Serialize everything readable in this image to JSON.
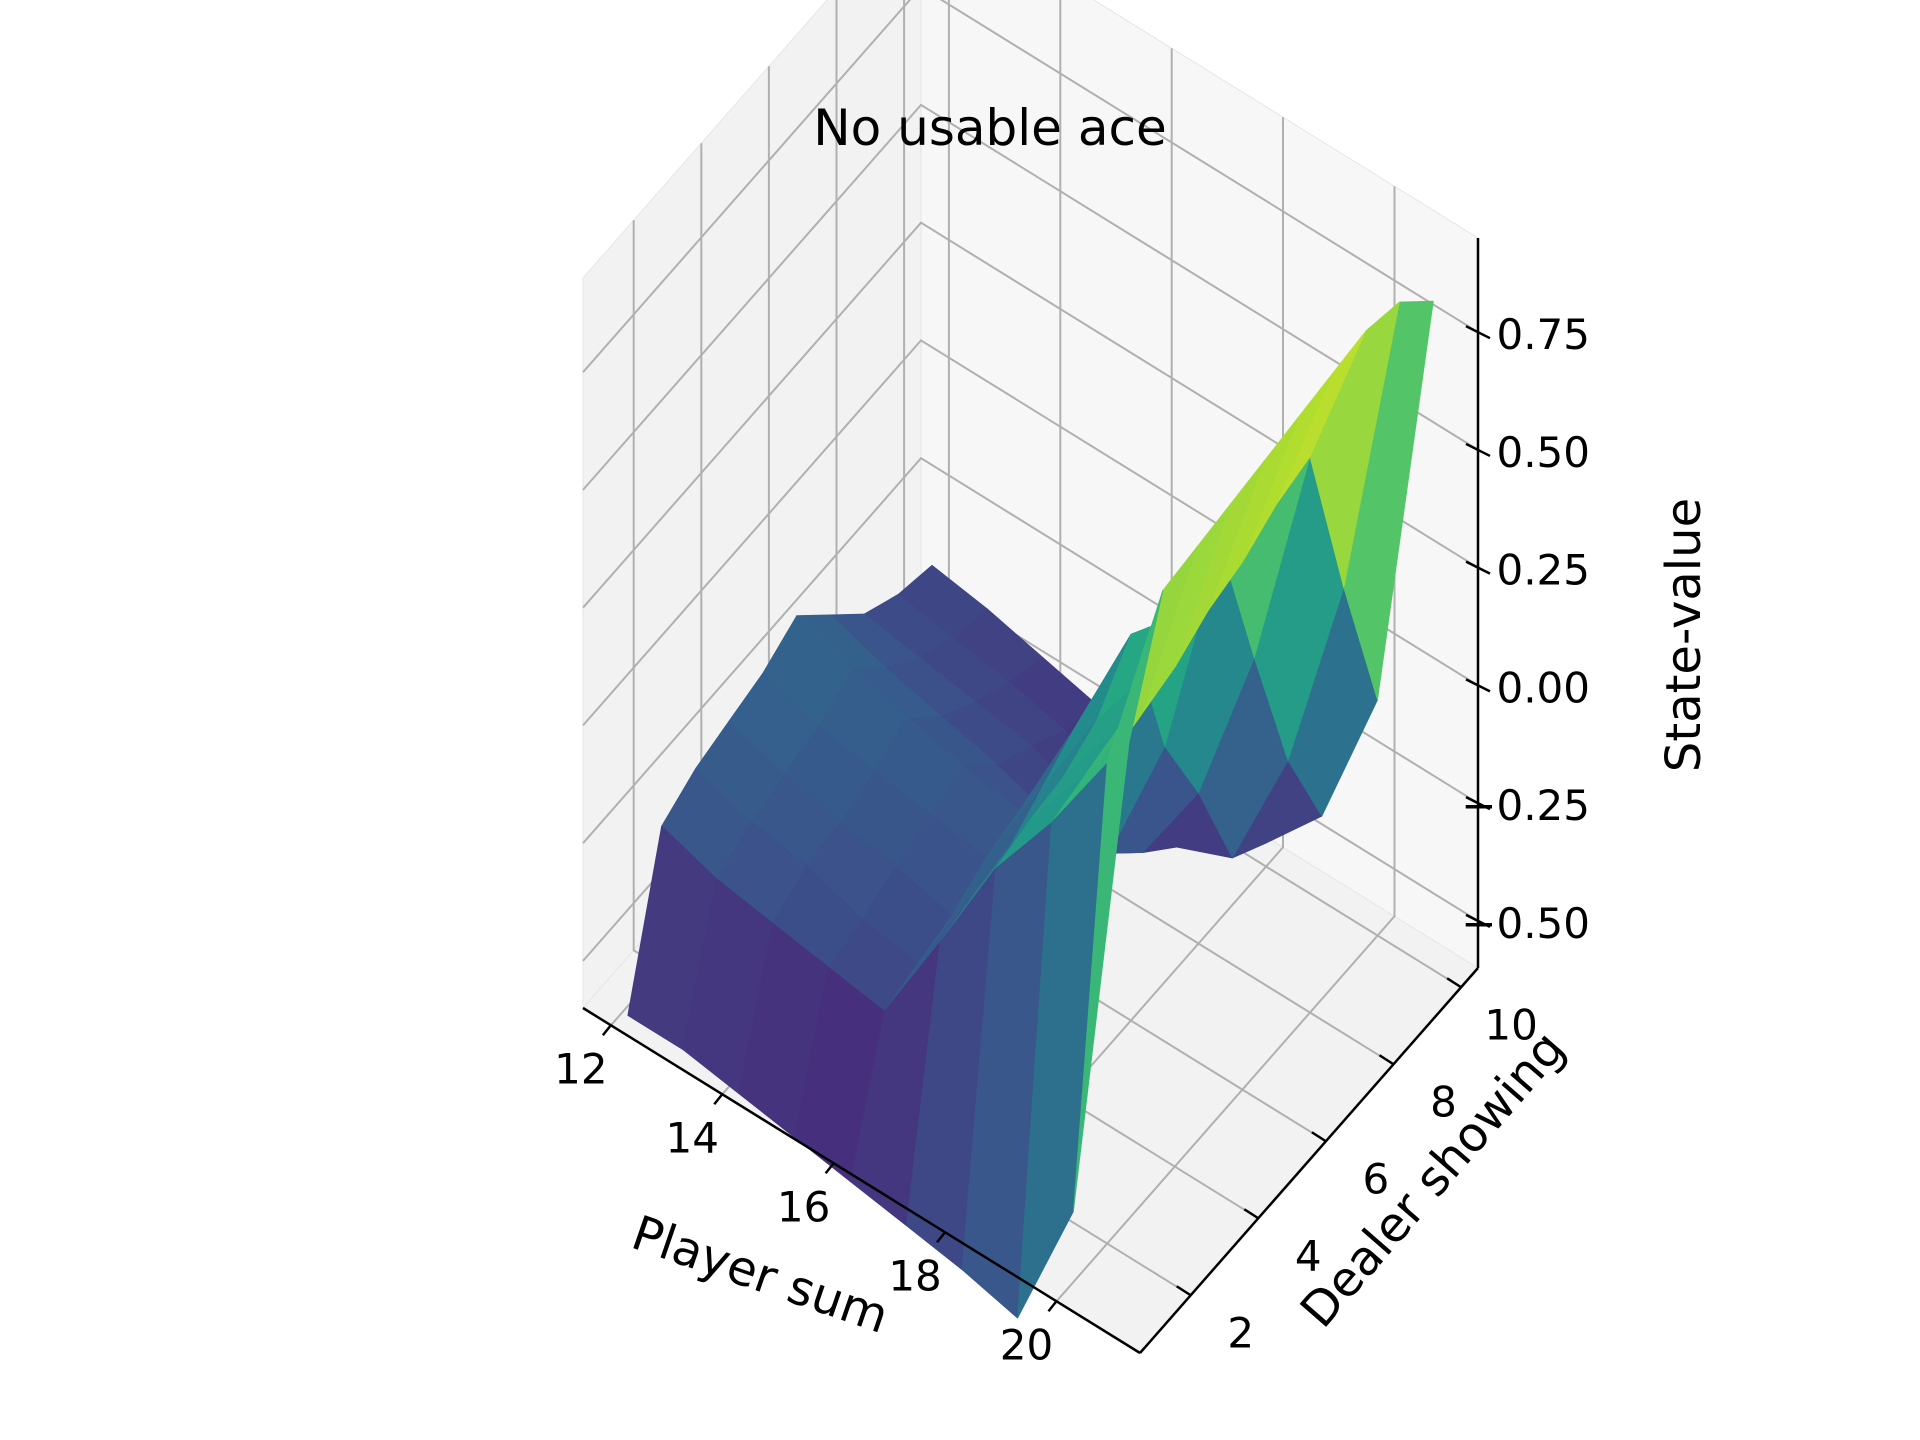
{
  "chart_data": {
    "type": "surface",
    "title": "No usable ace",
    "xlabel": "Player sum",
    "ylabel": "Dealer showing",
    "zlabel": "State-value",
    "x": [
      12,
      13,
      14,
      15,
      16,
      17,
      18,
      19,
      20,
      21
    ],
    "y": [
      1,
      2,
      3,
      4,
      5,
      6,
      7,
      8,
      9,
      10
    ],
    "x_ticks": [
      "12",
      "14",
      "16",
      "18",
      "20"
    ],
    "y_ticks": [
      "2",
      "4",
      "6",
      "8",
      "10"
    ],
    "z_ticks": [
      "−0.50",
      "−0.25",
      "0.00",
      "0.25",
      "0.50",
      "0.75"
    ],
    "xlim": [
      11.5,
      21.5
    ],
    "ylim": [
      0.5,
      10.5
    ],
    "zlim": [
      -0.6,
      0.95
    ],
    "colormap": "viridis",
    "grid": true,
    "values": [
      [
        -0.62,
        -0.3,
        -0.26,
        -0.24,
        -0.22,
        -0.18,
        -0.26,
        -0.34,
        -0.38,
        -0.4
      ],
      [
        -0.62,
        -0.34,
        -0.3,
        -0.28,
        -0.26,
        -0.22,
        -0.3,
        -0.36,
        -0.4,
        -0.42
      ],
      [
        -0.64,
        -0.36,
        -0.32,
        -0.31,
        -0.28,
        -0.25,
        -0.33,
        -0.38,
        -0.42,
        -0.45
      ],
      [
        -0.66,
        -0.38,
        -0.36,
        -0.33,
        -0.3,
        -0.28,
        -0.36,
        -0.4,
        -0.45,
        -0.48
      ],
      [
        -0.68,
        -0.4,
        -0.38,
        -0.36,
        -0.32,
        -0.3,
        -0.4,
        -0.45,
        -0.48,
        -0.5
      ],
      [
        -0.7,
        -0.18,
        -0.16,
        -0.15,
        -0.1,
        -0.05,
        -0.4,
        -0.48,
        -0.55,
        -0.58
      ],
      [
        -0.72,
        0.05,
        0.07,
        0.08,
        0.12,
        0.22,
        -0.1,
        -0.28,
        -0.5,
        -0.55
      ],
      [
        -0.75,
        0.22,
        0.24,
        0.26,
        0.3,
        0.34,
        0.4,
        0.08,
        -0.22,
        -0.42
      ],
      [
        -0.45,
        0.42,
        0.44,
        0.46,
        0.5,
        0.52,
        0.56,
        0.58,
        0.22,
        -0.1
      ],
      [
        0.62,
        0.86,
        0.87,
        0.88,
        0.89,
        0.9,
        0.91,
        0.92,
        0.9,
        0.82
      ]
    ]
  }
}
